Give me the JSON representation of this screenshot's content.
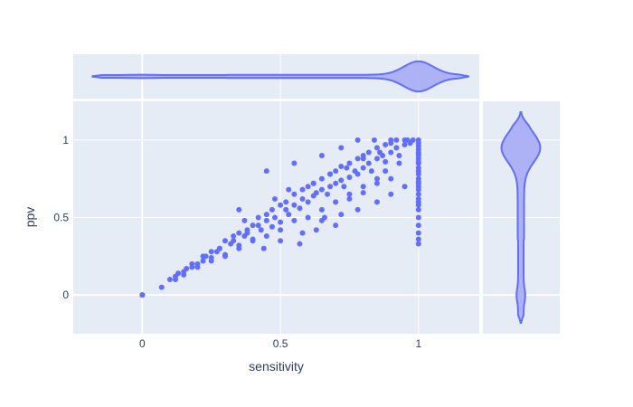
{
  "chart_data": {
    "type": "scatter",
    "title": "",
    "xlabel": "sensitivity",
    "ylabel": "ppv",
    "xlim": [
      -0.25,
      1.22
    ],
    "ylim": [
      -0.25,
      1.25
    ],
    "x_ticks": [
      {
        "value": 0,
        "label": "0"
      },
      {
        "value": 0.5,
        "label": "0.5"
      },
      {
        "value": 1,
        "label": "1"
      }
    ],
    "y_ticks": [
      {
        "value": 0,
        "label": "0"
      },
      {
        "value": 0.5,
        "label": "0.5"
      },
      {
        "value": 1,
        "label": "1"
      }
    ],
    "grid": true,
    "colors": {
      "marker": "#636efa",
      "plot_bg": "#e5ecf6",
      "grid": "#ffffff",
      "violin_fill": "#a6abf5"
    },
    "marginal_x": {
      "type": "violin",
      "range": [
        -0.18,
        1.18
      ],
      "peak": 1.0
    },
    "marginal_y": {
      "type": "violin",
      "range": [
        -0.18,
        1.18
      ],
      "peak": 0.95
    },
    "x": [
      0,
      0,
      0,
      0.07,
      0.1,
      0.12,
      0.13,
      0.15,
      0.16,
      0.18,
      0.2,
      0.22,
      0.23,
      0.25,
      0.27,
      0.28,
      0.3,
      0.32,
      0.33,
      0.35,
      0.37,
      0.38,
      0.4,
      0.42,
      0.43,
      0.45,
      0.47,
      0.48,
      0.5,
      0.52,
      0.53,
      0.55,
      0.57,
      0.58,
      0.6,
      0.62,
      0.63,
      0.65,
      0.67,
      0.68,
      0.7,
      0.72,
      0.73,
      0.75,
      0.77,
      0.78,
      0.8,
      0.82,
      0.83,
      0.85,
      0.87,
      0.88,
      0.9,
      0.92,
      0.93,
      0.95,
      0.97,
      0.98,
      0.12,
      0.15,
      0.18,
      0.2,
      0.22,
      0.25,
      0.28,
      0.3,
      0.33,
      0.35,
      0.38,
      0.4,
      0.42,
      0.45,
      0.47,
      0.5,
      0.52,
      0.55,
      0.58,
      0.6,
      0.62,
      0.65,
      0.68,
      0.7,
      0.72,
      0.75,
      0.78,
      0.8,
      0.82,
      0.85,
      0.88,
      0.9,
      0.92,
      0.95,
      0.25,
      0.3,
      0.35,
      0.4,
      0.45,
      0.5,
      0.55,
      0.6,
      0.65,
      0.7,
      0.75,
      0.8,
      0.85,
      0.9,
      0.58,
      0.65,
      0.72,
      0.78,
      0.85,
      0.9,
      0.95,
      0.44,
      0.5,
      0.57,
      0.63,
      0.7,
      0.37,
      0.48,
      0.53,
      0.62,
      0.68,
      0.74,
      0.8,
      0.86,
      0.92,
      0.66,
      0.7,
      0.75,
      0.8,
      0.85,
      0.88,
      0.93,
      0.35,
      0.45,
      0.55,
      0.65,
      0.72,
      0.78,
      0.84,
      0.9,
      0.96,
      1,
      1,
      1,
      1,
      1,
      1,
      1,
      1,
      1,
      1,
      1,
      1,
      1,
      1,
      1,
      1,
      1,
      1,
      1,
      1,
      1,
      1,
      1,
      1,
      1,
      1,
      1,
      1
    ],
    "y": [
      0,
      0,
      0,
      0.05,
      0.1,
      0.12,
      0.14,
      0.13,
      0.17,
      0.18,
      0.2,
      0.22,
      0.25,
      0.24,
      0.28,
      0.3,
      0.26,
      0.33,
      0.35,
      0.32,
      0.38,
      0.4,
      0.36,
      0.45,
      0.42,
      0.48,
      0.44,
      0.5,
      0.47,
      0.55,
      0.52,
      0.58,
      0.56,
      0.62,
      0.6,
      0.64,
      0.66,
      0.68,
      0.65,
      0.7,
      0.72,
      0.74,
      0.7,
      0.76,
      0.8,
      0.78,
      0.82,
      0.85,
      0.8,
      0.88,
      0.9,
      0.86,
      0.92,
      0.95,
      0.9,
      0.97,
      0.98,
      1.0,
      0.1,
      0.15,
      0.2,
      0.18,
      0.25,
      0.28,
      0.3,
      0.35,
      0.38,
      0.4,
      0.42,
      0.45,
      0.5,
      0.52,
      0.55,
      0.58,
      0.6,
      0.65,
      0.68,
      0.7,
      0.72,
      0.75,
      0.78,
      0.8,
      0.83,
      0.85,
      0.88,
      0.9,
      0.92,
      0.95,
      0.97,
      0.98,
      1.0,
      1.0,
      0.22,
      0.25,
      0.3,
      0.35,
      0.38,
      0.42,
      0.48,
      0.5,
      0.55,
      0.6,
      0.62,
      0.66,
      0.72,
      0.75,
      0.4,
      0.48,
      0.52,
      0.55,
      0.6,
      0.65,
      0.7,
      0.3,
      0.35,
      0.33,
      0.42,
      0.45,
      0.48,
      0.62,
      0.68,
      0.72,
      0.78,
      0.82,
      0.88,
      0.92,
      0.95,
      0.5,
      0.6,
      0.65,
      0.7,
      0.75,
      0.8,
      0.85,
      0.55,
      0.8,
      0.85,
      0.9,
      0.95,
      1.0,
      1.0,
      1.0,
      1.0,
      0.33,
      0.36,
      0.4,
      0.45,
      0.5,
      0.55,
      0.6,
      0.65,
      0.7,
      0.72,
      0.75,
      0.78,
      0.8,
      0.82,
      0.85,
      0.88,
      0.9,
      0.92,
      0.94,
      0.96,
      0.98,
      1.0,
      0.62,
      0.68,
      0.58,
      0.86,
      0.73,
      0.91
    ]
  }
}
